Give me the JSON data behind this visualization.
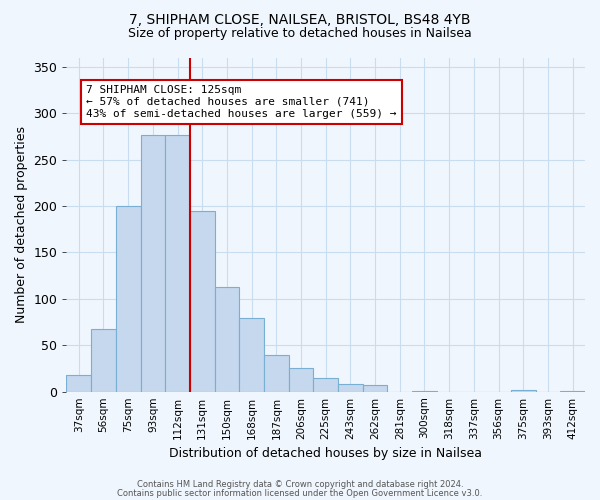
{
  "title1": "7, SHIPHAM CLOSE, NAILSEA, BRISTOL, BS48 4YB",
  "title2": "Size of property relative to detached houses in Nailsea",
  "xlabel": "Distribution of detached houses by size in Nailsea",
  "ylabel": "Number of detached properties",
  "bin_labels": [
    "37sqm",
    "56sqm",
    "75sqm",
    "93sqm",
    "112sqm",
    "131sqm",
    "150sqm",
    "168sqm",
    "187sqm",
    "206sqm",
    "225sqm",
    "243sqm",
    "262sqm",
    "281sqm",
    "300sqm",
    "318sqm",
    "337sqm",
    "356sqm",
    "375sqm",
    "393sqm",
    "412sqm"
  ],
  "bar_heights": [
    18,
    68,
    200,
    277,
    277,
    195,
    113,
    79,
    40,
    25,
    15,
    8,
    7,
    0,
    1,
    0,
    0,
    0,
    2,
    0,
    1
  ],
  "bar_color": "#c5d8ed",
  "bar_edge_color": "#7aafd4",
  "bar_edge_width": 0.8,
  "vline_color": "#cc0000",
  "annotation_text": "7 SHIPHAM CLOSE: 125sqm\n← 57% of detached houses are smaller (741)\n43% of semi-detached houses are larger (559) →",
  "annotation_box_color": "white",
  "annotation_box_edge": "#cc0000",
  "ylim": [
    0,
    360
  ],
  "yticks": [
    0,
    50,
    100,
    150,
    200,
    250,
    300,
    350
  ],
  "footer1": "Contains HM Land Registry data © Crown copyright and database right 2024.",
  "footer2": "Contains public sector information licensed under the Open Government Licence v3.0.",
  "bg_color": "#f0f6fd",
  "grid_color": "#c8ddf0"
}
